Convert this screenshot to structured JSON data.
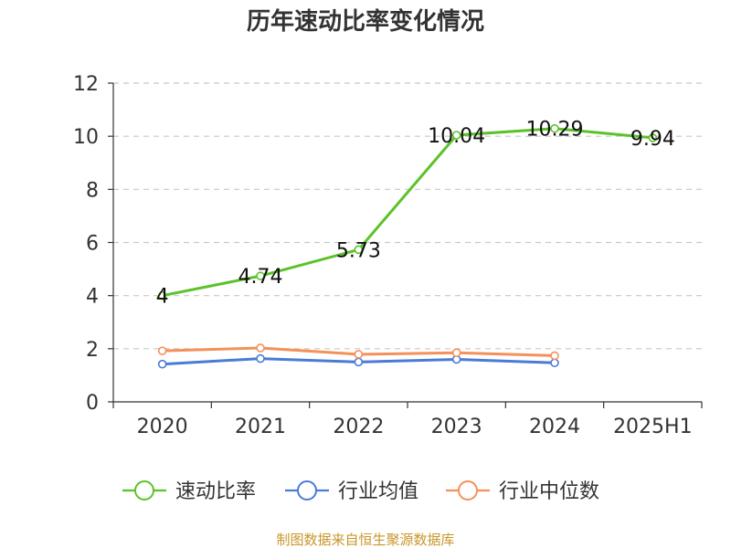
{
  "chart_data": {
    "type": "line",
    "title": "历年速动比率变化情况",
    "categories": [
      "2020",
      "2021",
      "2022",
      "2023",
      "2024",
      "2025H1"
    ],
    "ylim": [
      0,
      12
    ],
    "yticks": [
      0,
      2,
      4,
      6,
      8,
      10,
      12
    ],
    "grid": true,
    "legend_position": "bottom",
    "series": [
      {
        "name": "速动比率",
        "color": "#5cc22a",
        "values": [
          4.0,
          4.74,
          5.73,
          10.04,
          10.29,
          9.94
        ],
        "labels": [
          "4",
          "4.74",
          "5.73",
          "10.04",
          "10.29",
          "9.94"
        ]
      },
      {
        "name": "行业均值",
        "color": "#4a7bd8",
        "values": [
          1.42,
          1.63,
          1.5,
          1.6,
          1.47,
          null
        ]
      },
      {
        "name": "行业中位数",
        "color": "#f5905a",
        "values": [
          1.92,
          2.03,
          1.79,
          1.85,
          1.74,
          null
        ]
      }
    ],
    "source": "制图数据来自恒生聚源数据库"
  }
}
